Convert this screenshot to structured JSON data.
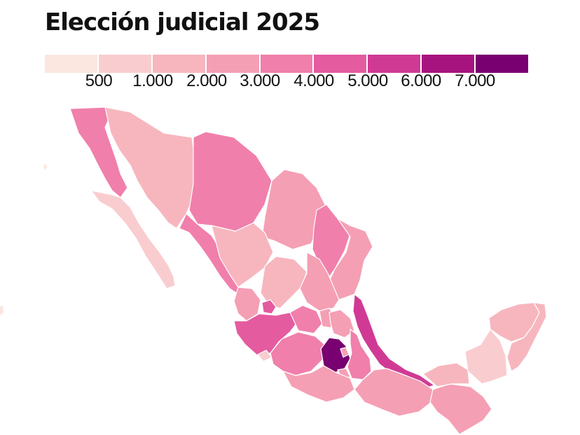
{
  "title": "Elección judicial 2025",
  "legend": {
    "colors": [
      "#fbe6e0",
      "#f9cdcf",
      "#f7b6be",
      "#f59fb4",
      "#f07fab",
      "#e45ba0",
      "#d03a95",
      "#a8147f",
      "#780070"
    ],
    "ticks": [
      "500",
      "1.000",
      "2.000",
      "3.000",
      "4.000",
      "5.000",
      "6.000",
      "7.000"
    ]
  },
  "map": {
    "states": [
      {
        "name": "Baja California",
        "bin": 4
      },
      {
        "name": "Baja California Sur",
        "bin": 1
      },
      {
        "name": "Sonora",
        "bin": 2
      },
      {
        "name": "Chihuahua",
        "bin": 4
      },
      {
        "name": "Coahuila",
        "bin": 3
      },
      {
        "name": "Nuevo León",
        "bin": 4
      },
      {
        "name": "Tamaulipas",
        "bin": 3
      },
      {
        "name": "Sinaloa",
        "bin": 4
      },
      {
        "name": "Durango",
        "bin": 2
      },
      {
        "name": "Zacatecas",
        "bin": 2
      },
      {
        "name": "San Luis Potosí",
        "bin": 3
      },
      {
        "name": "Nayarit",
        "bin": 3
      },
      {
        "name": "Aguascalientes",
        "bin": 5
      },
      {
        "name": "Jalisco",
        "bin": 5
      },
      {
        "name": "Colima",
        "bin": 1
      },
      {
        "name": "Michoacán",
        "bin": 4
      },
      {
        "name": "Guanajuato",
        "bin": 4
      },
      {
        "name": "Querétaro",
        "bin": 3
      },
      {
        "name": "Hidalgo",
        "bin": 3
      },
      {
        "name": "Veracruz",
        "bin": 6
      },
      {
        "name": "Estado de México",
        "bin": 8
      },
      {
        "name": "Ciudad de México",
        "bin": 3
      },
      {
        "name": "Morelos",
        "bin": 3
      },
      {
        "name": "Tlaxcala",
        "bin": 3
      },
      {
        "name": "Puebla",
        "bin": 4
      },
      {
        "name": "Guerrero",
        "bin": 3
      },
      {
        "name": "Oaxaca",
        "bin": 3
      },
      {
        "name": "Chiapas",
        "bin": 3
      },
      {
        "name": "Tabasco",
        "bin": 2
      },
      {
        "name": "Campeche",
        "bin": 1
      },
      {
        "name": "Yucatán",
        "bin": 2
      },
      {
        "name": "Quintana Roo",
        "bin": 2
      }
    ]
  }
}
